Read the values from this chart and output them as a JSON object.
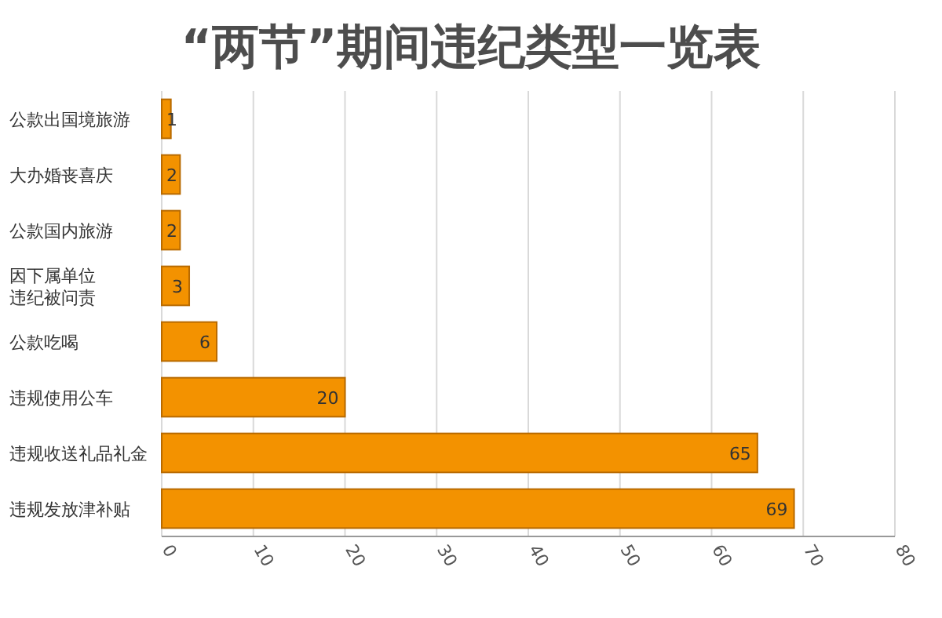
{
  "chart_data": {
    "type": "bar",
    "orientation": "horizontal",
    "title": "“两节”期间违纪类型一览表",
    "categories": [
      "公款出国境旅游",
      "大办婚丧喜庆",
      "公款国内旅游",
      "因下属单位违纪被问责",
      "公款吃喝",
      "违规使用公车",
      "违规收送礼品礼金",
      "违规发放津补贴"
    ],
    "values": [
      1,
      2,
      2,
      3,
      6,
      20,
      65,
      69
    ],
    "color": "#f39200",
    "data_labels": true,
    "grid": "x",
    "xlim": [
      0,
      80
    ],
    "xticks": [
      0,
      10,
      20,
      30,
      40,
      50,
      60,
      70,
      80
    ]
  }
}
